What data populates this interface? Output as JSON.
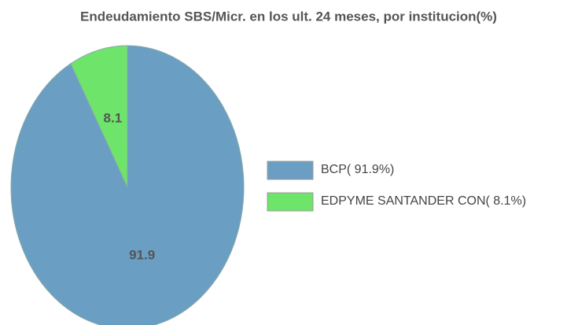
{
  "chart_data": {
    "type": "pie",
    "title": "Endeudamiento SBS/Micr. en los ult. 24 meses, por institucion(%)",
    "categories": [
      "BCP( 91.9%)",
      "EDPYME SANTANDER CON(  8.1%)"
    ],
    "values": [
      91.9,
      8.1
    ],
    "colors": [
      "#6a9ec2",
      "#6ee46a"
    ],
    "legend": "right"
  }
}
